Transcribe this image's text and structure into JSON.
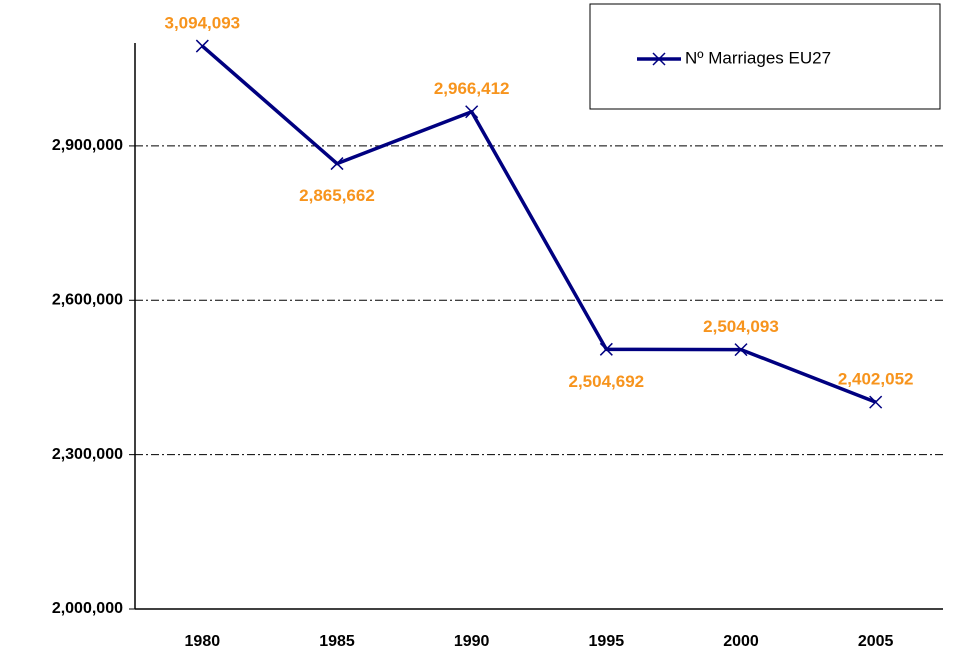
{
  "chart_data": {
    "type": "line",
    "categories": [
      "1980",
      "1985",
      "1990",
      "1995",
      "2000",
      "2005"
    ],
    "series": [
      {
        "name": "Nº Marriages EU27",
        "color": "#000080",
        "values": [
          3094093,
          2865662,
          2966412,
          2504692,
          2504093,
          2402052
        ],
        "value_labels": [
          "3,094,093",
          "2,865,662",
          "2,966,412",
          "2,504,692",
          "2,504,093",
          "2,402,052"
        ]
      }
    ],
    "label_color": "#f7941d",
    "ylim": [
      2000000,
      3100000
    ],
    "yticks": [
      {
        "value": 2000000,
        "label": "2,000,000"
      },
      {
        "value": 2300000,
        "label": "2,300,000"
      },
      {
        "value": 2600000,
        "label": "2,600,000"
      },
      {
        "value": 2900000,
        "label": "2,900,000"
      }
    ],
    "grid": true,
    "legend": "top-right"
  }
}
